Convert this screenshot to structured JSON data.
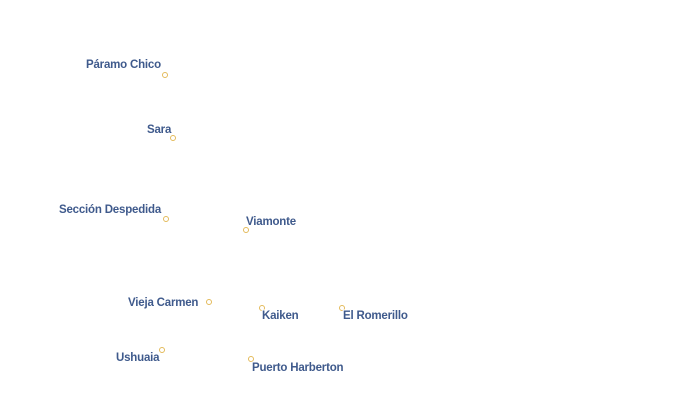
{
  "places": [
    {
      "id": "paramo-chico",
      "name": "Páramo Chico"
    },
    {
      "id": "sara",
      "name": "Sara"
    },
    {
      "id": "seccion-despedida",
      "name": "Sección Despedida"
    },
    {
      "id": "viamonte",
      "name": "Viamonte"
    },
    {
      "id": "vieja-carmen",
      "name": "Vieja Carmen"
    },
    {
      "id": "kaiken",
      "name": "Kaiken"
    },
    {
      "id": "el-romerillo",
      "name": "El Romerillo"
    },
    {
      "id": "ushuaia",
      "name": "Ushuaia"
    },
    {
      "id": "puerto-harberton",
      "name": "Puerto Harberton"
    }
  ],
  "colors": {
    "label": "#3f5a8c",
    "marker": "#e3ba5a",
    "background": "#ffffff"
  }
}
